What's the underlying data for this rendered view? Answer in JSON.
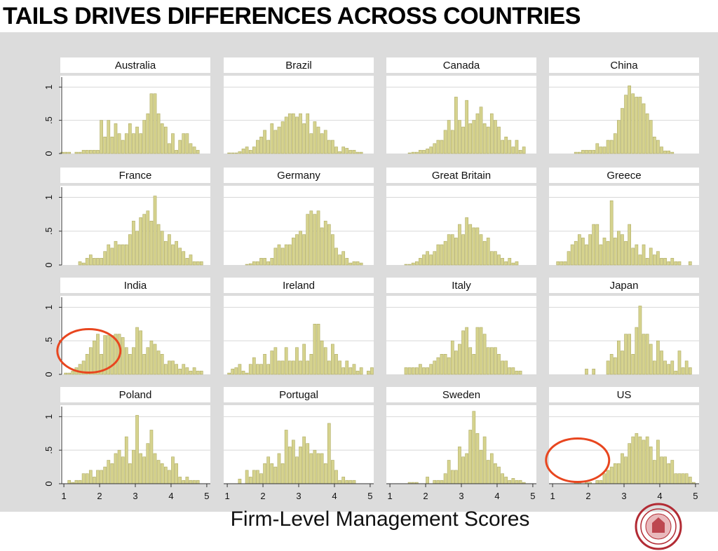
{
  "slide": {
    "title": "TAILS DRIVES DIFFERENCES ACROSS COUNTRIES",
    "x_axis_label": "Firm-Level Management Scores"
  },
  "colors": {
    "bar_fill": "#d6d38e",
    "bar_stroke": "#aeab64",
    "highlight_circle": "#e8461f",
    "panel_background": "#ffffff",
    "plot_region_background": "#dcdcdc",
    "grid": "#d8d8d8",
    "seal": "#b22b34"
  },
  "chart_data": {
    "type": "bar",
    "layout": "small multiples, 4 x 4 grid of histograms",
    "bin_start": 0.9,
    "bin_width": 0.1,
    "xlim": [
      0.9,
      5.1
    ],
    "ylim": [
      0,
      1.15
    ],
    "x_ticks": [
      1,
      2,
      3,
      4,
      5
    ],
    "x_tick_labels": [
      "1",
      "2",
      "3",
      "4",
      "5"
    ],
    "y_ticks": [
      0,
      0.5,
      1
    ],
    "y_tick_labels": [
      "0",
      ".5",
      "1"
    ],
    "grid": true,
    "legend": "none",
    "panels": [
      {
        "name": "Australia",
        "values": [
          0.02,
          0.02,
          0.02,
          0,
          0.02,
          0.02,
          0.05,
          0.05,
          0.05,
          0.05,
          0.05,
          0.5,
          0.25,
          0.5,
          0.25,
          0.45,
          0.3,
          0.2,
          0.3,
          0.45,
          0.3,
          0.4,
          0.3,
          0.5,
          0.6,
          0.9,
          0.9,
          0.6,
          0.45,
          0.4,
          0.15,
          0.3,
          0.05,
          0.2,
          0.3,
          0.3,
          0.15,
          0.1,
          0.05,
          0,
          0,
          0
        ],
        "highlight": false
      },
      {
        "name": "Brazil",
        "values": [
          0,
          0.01,
          0.01,
          0.01,
          0.03,
          0.07,
          0.1,
          0.05,
          0.1,
          0.2,
          0.25,
          0.35,
          0.2,
          0.45,
          0.35,
          0.4,
          0.48,
          0.55,
          0.6,
          0.6,
          0.55,
          0.6,
          0.45,
          0.6,
          0.3,
          0.48,
          0.4,
          0.3,
          0.35,
          0.2,
          0.2,
          0.1,
          0.03,
          0.1,
          0.08,
          0.05,
          0.05,
          0.02,
          0.02,
          0,
          0,
          0
        ],
        "highlight": false
      },
      {
        "name": "Canada",
        "values": [
          0,
          0,
          0,
          0,
          0,
          0,
          0.01,
          0.02,
          0.02,
          0.05,
          0.05,
          0.07,
          0.1,
          0.15,
          0.2,
          0.2,
          0.35,
          0.5,
          0.35,
          0.85,
          0.5,
          0.4,
          0.8,
          0.45,
          0.5,
          0.6,
          0.7,
          0.45,
          0.4,
          0.6,
          0.5,
          0.4,
          0.2,
          0.25,
          0.2,
          0.1,
          0.2,
          0.05,
          0.1,
          0,
          0,
          0
        ],
        "highlight": false
      },
      {
        "name": "China",
        "values": [
          0,
          0,
          0,
          0,
          0,
          0,
          0,
          0.02,
          0.02,
          0.05,
          0.05,
          0.05,
          0.05,
          0.15,
          0.1,
          0.1,
          0.2,
          0.2,
          0.3,
          0.5,
          0.68,
          0.88,
          1.02,
          0.9,
          0.85,
          0.85,
          0.75,
          0.6,
          0.5,
          0.25,
          0.2,
          0.1,
          0.04,
          0.04,
          0.02,
          0,
          0,
          0,
          0,
          0,
          0,
          0
        ],
        "highlight": false
      },
      {
        "name": "France",
        "values": [
          0,
          0,
          0,
          0,
          0,
          0.05,
          0.03,
          0.1,
          0.15,
          0.1,
          0.1,
          0.1,
          0.2,
          0.3,
          0.25,
          0.35,
          0.3,
          0.3,
          0.3,
          0.45,
          0.65,
          0.5,
          0.7,
          0.75,
          0.8,
          0.65,
          1.02,
          0.6,
          0.5,
          0.35,
          0.45,
          0.3,
          0.35,
          0.25,
          0.2,
          0.1,
          0.15,
          0.05,
          0.05,
          0.05,
          0,
          0
        ],
        "highlight": false
      },
      {
        "name": "Germany",
        "values": [
          0,
          0,
          0,
          0,
          0,
          0,
          0.01,
          0.02,
          0.05,
          0.05,
          0.1,
          0.1,
          0.05,
          0.1,
          0.25,
          0.3,
          0.25,
          0.3,
          0.3,
          0.4,
          0.45,
          0.5,
          0.45,
          0.75,
          0.8,
          0.75,
          0.8,
          0.55,
          0.65,
          0.6,
          0.45,
          0.25,
          0.15,
          0.2,
          0.1,
          0.03,
          0.05,
          0.05,
          0.03,
          0,
          0,
          0
        ],
        "highlight": false
      },
      {
        "name": "Great Britain",
        "values": [
          0,
          0,
          0,
          0,
          0,
          0.01,
          0.01,
          0.03,
          0.05,
          0.1,
          0.15,
          0.2,
          0.15,
          0.2,
          0.3,
          0.3,
          0.35,
          0.45,
          0.45,
          0.4,
          0.6,
          0.45,
          0.7,
          0.6,
          0.55,
          0.55,
          0.45,
          0.35,
          0.4,
          0.2,
          0.2,
          0.15,
          0.1,
          0.05,
          0.1,
          0.03,
          0.05,
          0,
          0,
          0,
          0,
          0
        ],
        "highlight": false
      },
      {
        "name": "Greece",
        "values": [
          0,
          0,
          0.05,
          0.05,
          0.05,
          0.2,
          0.3,
          0.35,
          0.45,
          0.4,
          0.3,
          0.45,
          0.6,
          0.6,
          0.3,
          0.4,
          0.35,
          0.95,
          0.4,
          0.5,
          0.45,
          0.35,
          0.6,
          0.25,
          0.3,
          0.15,
          0.3,
          0.1,
          0.25,
          0.15,
          0.2,
          0.1,
          0.1,
          0.05,
          0.1,
          0.05,
          0.05,
          0,
          0,
          0.05,
          0,
          0
        ],
        "highlight": false
      },
      {
        "name": "India",
        "values": [
          0,
          0.02,
          0.02,
          0.05,
          0.1,
          0.15,
          0.2,
          0.3,
          0.4,
          0.5,
          0.6,
          0.3,
          0.58,
          0.58,
          0.58,
          0.6,
          0.6,
          0.55,
          0.4,
          0.3,
          0.4,
          0.7,
          0.65,
          0.3,
          0.4,
          0.5,
          0.45,
          0.35,
          0.3,
          0.15,
          0.2,
          0.2,
          0.15,
          0.08,
          0.15,
          0.1,
          0.05,
          0.1,
          0.05,
          0.05,
          0,
          0
        ],
        "highlight": true
      },
      {
        "name": "Ireland",
        "values": [
          0,
          0.02,
          0.08,
          0.1,
          0.15,
          0.05,
          0.02,
          0.15,
          0.25,
          0.15,
          0.15,
          0.3,
          0.15,
          0.35,
          0.4,
          0.2,
          0.2,
          0.4,
          0.2,
          0.2,
          0.4,
          0.2,
          0.45,
          0.2,
          0.3,
          0.75,
          0.75,
          0.5,
          0.4,
          0.2,
          0.45,
          0.3,
          0.2,
          0.1,
          0.2,
          0.1,
          0.15,
          0.05,
          0.1,
          0,
          0.05,
          0.1
        ],
        "highlight": false
      },
      {
        "name": "Italy",
        "values": [
          0,
          0,
          0,
          0,
          0,
          0.1,
          0.1,
          0.1,
          0.1,
          0.15,
          0.1,
          0.1,
          0.15,
          0.2,
          0.25,
          0.3,
          0.3,
          0.25,
          0.5,
          0.35,
          0.45,
          0.65,
          0.7,
          0.4,
          0.3,
          0.7,
          0.7,
          0.6,
          0.4,
          0.4,
          0.4,
          0.3,
          0.2,
          0.2,
          0.1,
          0.1,
          0.05,
          0.05,
          0,
          0,
          0,
          0
        ],
        "highlight": false
      },
      {
        "name": "Japan",
        "values": [
          0,
          0,
          0,
          0,
          0,
          0,
          0,
          0,
          0,
          0,
          0.08,
          0,
          0.08,
          0,
          0,
          0,
          0.2,
          0.3,
          0.25,
          0.5,
          0.35,
          0.6,
          0.6,
          0.3,
          0.7,
          1.02,
          0.6,
          0.6,
          0.45,
          0.2,
          0.5,
          0.35,
          0.2,
          0.15,
          0.2,
          0.05,
          0.35,
          0.1,
          0.2,
          0.1,
          0,
          0
        ],
        "highlight": false
      },
      {
        "name": "Poland",
        "values": [
          0,
          0,
          0.05,
          0.02,
          0.05,
          0.05,
          0.15,
          0.15,
          0.2,
          0.1,
          0.2,
          0.2,
          0.25,
          0.35,
          0.3,
          0.45,
          0.5,
          0.4,
          0.7,
          0.3,
          0.5,
          1.02,
          0.45,
          0.4,
          0.6,
          0.8,
          0.45,
          0.35,
          0.3,
          0.25,
          0.2,
          0.4,
          0.3,
          0.1,
          0.05,
          0.1,
          0.05,
          0.05,
          0.05,
          0,
          0,
          0
        ],
        "highlight": false
      },
      {
        "name": "Portugal",
        "values": [
          0,
          0,
          0,
          0,
          0.07,
          0,
          0.2,
          0.1,
          0.2,
          0.2,
          0.15,
          0.3,
          0.4,
          0.3,
          0.25,
          0.45,
          0.3,
          0.8,
          0.55,
          0.65,
          0.4,
          0.55,
          0.7,
          0.6,
          0.45,
          0.5,
          0.45,
          0.45,
          0.3,
          0.9,
          0.35,
          0.2,
          0.05,
          0.1,
          0.05,
          0.05,
          0.05,
          0,
          0,
          0,
          0,
          0
        ],
        "highlight": false
      },
      {
        "name": "Sweden",
        "values": [
          0,
          0,
          0,
          0,
          0,
          0,
          0.02,
          0.02,
          0.02,
          0,
          0,
          0.1,
          0,
          0.05,
          0.05,
          0.05,
          0.15,
          0.35,
          0.2,
          0.2,
          0.55,
          0.4,
          0.45,
          0.8,
          1.08,
          0.75,
          0.5,
          0.7,
          0.35,
          0.45,
          0.3,
          0.25,
          0.15,
          0.1,
          0.05,
          0.08,
          0.05,
          0.05,
          0.02,
          0,
          0,
          0
        ],
        "highlight": false
      },
      {
        "name": "US",
        "values": [
          0,
          0,
          0,
          0,
          0,
          0,
          0,
          0.02,
          0.02,
          0,
          0.02,
          0.02,
          0,
          0.05,
          0.05,
          0.15,
          0.2,
          0.25,
          0.3,
          0.3,
          0.45,
          0.4,
          0.6,
          0.7,
          0.75,
          0.7,
          0.65,
          0.7,
          0.55,
          0.35,
          0.65,
          0.4,
          0.4,
          0.3,
          0.35,
          0.15,
          0.15,
          0.15,
          0.15,
          0.1,
          0.02,
          0
        ],
        "highlight": true
      }
    ]
  }
}
